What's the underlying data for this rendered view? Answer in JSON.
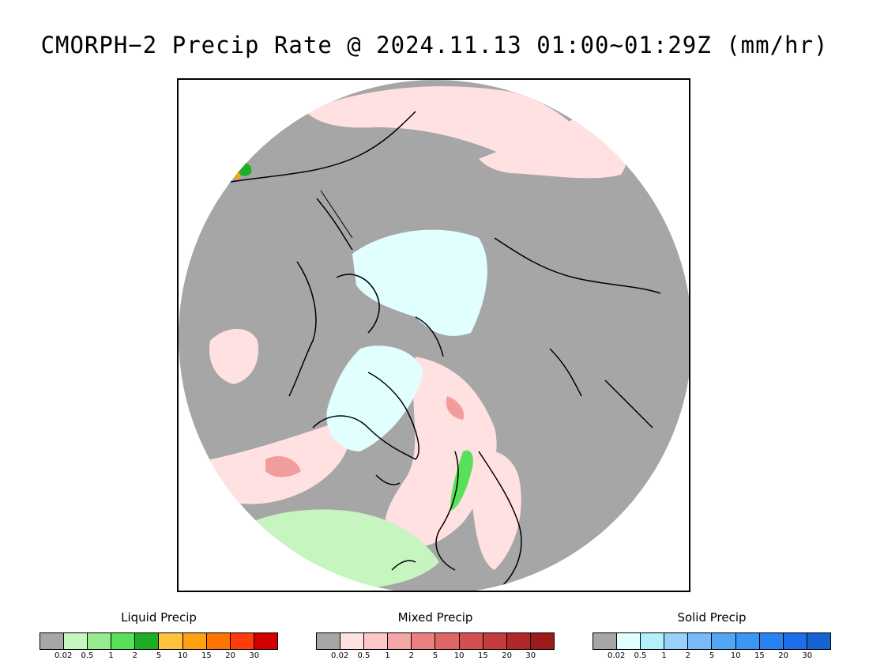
{
  "title": "CMORPH−2 Precip Rate @ 2024.11.13 01:00~01:29Z (mm/hr)",
  "legends": [
    {
      "title": "Liquid Precip",
      "colors": [
        "#a6a6a6",
        "#c6f5c0",
        "#96ec8c",
        "#58e05a",
        "#1fad26",
        "#ffc23c",
        "#ffa012",
        "#ff7300",
        "#ff3c0e",
        "#d40000"
      ],
      "ticks": [
        "0.02",
        "0.5",
        "1",
        "2",
        "5",
        "10",
        "15",
        "20",
        "30"
      ]
    },
    {
      "title": "Mixed Precip",
      "colors": [
        "#a6a6a6",
        "#ffe1e1",
        "#ffc6c8",
        "#f5a5a5",
        "#ec8080",
        "#e06565",
        "#d45050",
        "#c43c3c",
        "#b02828",
        "#9c1c1c"
      ],
      "ticks": [
        "0.02",
        "0.5",
        "1",
        "2",
        "5",
        "10",
        "15",
        "20",
        "30"
      ]
    },
    {
      "title": "Solid Precip",
      "colors": [
        "#a6a6a6",
        "#e1ffff",
        "#b4f0fa",
        "#96d2fa",
        "#78b9fa",
        "#50a5f5",
        "#3c96f5",
        "#2882f0",
        "#1e6eeb",
        "#1464d2"
      ],
      "ticks": [
        "0.02",
        "0.5",
        "1",
        "2",
        "5",
        "10",
        "15",
        "20",
        "30"
      ]
    }
  ],
  "map_colors": {
    "no_precip": "#a6a6a6",
    "mixed_light": "#ffe1e1",
    "mixed_mod": "#ec8080",
    "solid_light": "#e1ffff",
    "liquid_light": "#c6f5c0",
    "liquid_mod": "#58e05a",
    "liquid_heavy": "#1fad26",
    "liquid_orange": "#ffa012"
  }
}
